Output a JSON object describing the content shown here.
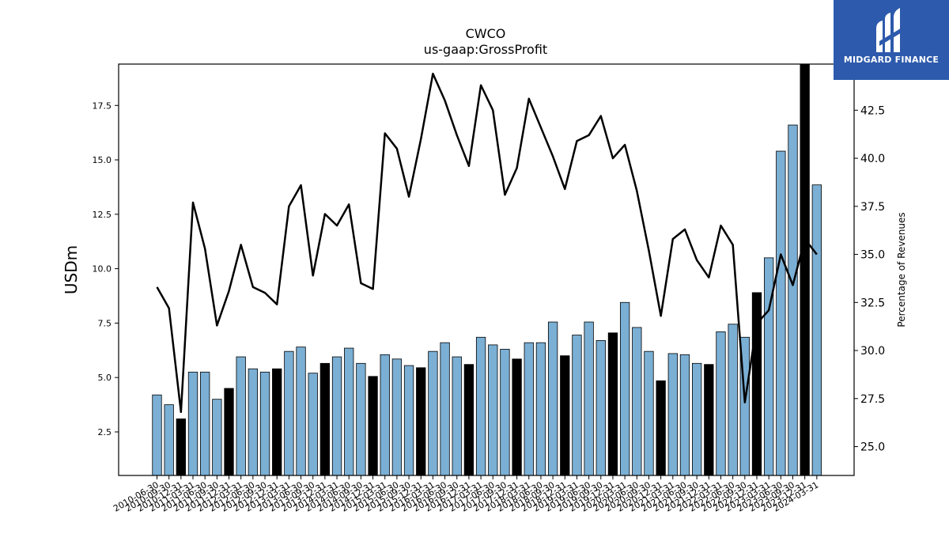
{
  "logo": {
    "text": "MIDGARD FINANCE",
    "icon": "midgard-logo-icon"
  },
  "colors": {
    "bar_default": "#7bafd4",
    "bar_highlight": "#000000",
    "line": "#000000",
    "logo_bg": "#2d5aac"
  },
  "chart_data": {
    "type": "bar",
    "title": "CWCO",
    "subtitle": "us-gaap:GrossProfit",
    "ylabel": "USDm",
    "y2label": "Percentage of Revenues",
    "ylim": [
      0.5,
      19.4
    ],
    "y2lim": [
      23.5,
      44.9
    ],
    "yticks": [
      "2.5",
      "5.0",
      "7.5",
      "10.0",
      "12.5",
      "15.0",
      "17.5"
    ],
    "y2ticks": [
      "25.0",
      "27.5",
      "30.0",
      "32.5",
      "35.0",
      "37.5",
      "40.0",
      "42.5"
    ],
    "categories": [
      "2010-06-30",
      "2010-09-30",
      "2010-12-31",
      "2011-03-31",
      "2011-06-30",
      "2011-09-30",
      "2011-12-31",
      "2012-03-31",
      "2012-06-30",
      "2012-09-30",
      "2012-12-31",
      "2013-03-31",
      "2013-06-30",
      "2013-09-30",
      "2013-12-31",
      "2014-03-31",
      "2014-06-30",
      "2014-09-30",
      "2014-12-31",
      "2015-03-31",
      "2015-06-30",
      "2015-09-30",
      "2015-12-31",
      "2016-03-31",
      "2016-06-30",
      "2016-09-30",
      "2016-12-31",
      "2017-03-31",
      "2017-06-30",
      "2017-09-30",
      "2017-12-31",
      "2018-03-31",
      "2018-06-30",
      "2018-09-30",
      "2018-12-31",
      "2019-03-31",
      "2019-06-30",
      "2019-09-30",
      "2019-12-31",
      "2020-03-31",
      "2020-06-30",
      "2020-09-30",
      "2020-12-31",
      "2021-03-31",
      "2021-06-30",
      "2021-09-30",
      "2021-12-31",
      "2022-03-31",
      "2022-06-30",
      "2022-09-30",
      "2022-12-31",
      "2023-03-31",
      "2023-06-30",
      "2023-09-30",
      "2023-12-31",
      "2024-03-31"
    ],
    "xtick_labels": [
      "2010-06-30",
      "2010-09-30",
      "2010-12-31",
      "2011-03-31",
      "2011-06-30",
      "2011-09-30",
      "2011-12-31",
      "2012-03-31",
      "2012-06-30",
      "2012-09-30",
      "2012-12-31",
      "2013-03-31",
      "2013-06-30",
      "2013-09-30",
      "2013-12-31",
      "2014-03-31",
      "2014-06-30",
      "2014-09-30",
      "2014-12-31",
      "2015-03-31",
      "2015-06-30",
      "2015-09-30",
      "2015-12-31",
      "2016-03-31",
      "2016-06-30",
      "2016-09-30",
      "2016-12-31",
      "2017-03-31",
      "2017-06-30",
      "2017-09-30",
      "2017-12-31",
      "2018-03-31",
      "2018-06-30",
      "2018-09-30",
      "2018-12-31",
      "2019-03-31",
      "2019-06-30",
      "2019-09-30",
      "2019-12-31",
      "2020-03-31",
      "2020-06-30",
      "2020-09-30",
      "2020-12-31",
      "2021-03-31",
      "2021-06-30",
      "2021-09-30",
      "2021-12-31",
      "2022-03-31",
      "2022-06-30",
      "2022-09-30",
      "2022-12-31",
      "2023-03-31",
      "2023-06-30",
      "2023-09-30",
      "2023-12-31",
      "2024-03-31"
    ],
    "bar_values": [
      4.2,
      3.75,
      3.1,
      5.25,
      5.25,
      4.0,
      4.5,
      5.95,
      5.4,
      5.25,
      5.4,
      6.2,
      6.4,
      5.2,
      5.65,
      5.95,
      6.35,
      5.65,
      5.05,
      6.05,
      5.85,
      5.55,
      5.45,
      6.2,
      6.6,
      5.95,
      5.6,
      6.85,
      6.5,
      6.3,
      5.85,
      6.6,
      6.6,
      7.55,
      6.0,
      6.95,
      7.55,
      6.7,
      7.05,
      8.45,
      7.3,
      6.2,
      4.85,
      6.1,
      6.05,
      5.65,
      5.6,
      7.1,
      7.45,
      6.85,
      8.9,
      10.5,
      15.4,
      16.6,
      19.4,
      13.85
    ],
    "bar_highlight": [
      false,
      false,
      true,
      false,
      false,
      false,
      true,
      false,
      false,
      false,
      true,
      false,
      false,
      false,
      true,
      false,
      false,
      false,
      true,
      false,
      false,
      false,
      true,
      false,
      false,
      false,
      true,
      false,
      false,
      false,
      true,
      false,
      false,
      false,
      true,
      false,
      false,
      false,
      true,
      false,
      false,
      false,
      true,
      false,
      false,
      false,
      true,
      false,
      false,
      false,
      true,
      false,
      false,
      false,
      true,
      false
    ],
    "line_values": [
      33.3,
      32.2,
      26.8,
      37.7,
      35.3,
      31.3,
      33.1,
      35.5,
      33.3,
      33.0,
      32.4,
      37.5,
      38.6,
      33.9,
      37.1,
      36.5,
      37.6,
      33.5,
      33.2,
      41.3,
      40.5,
      38.0,
      41.0,
      44.4,
      43.0,
      41.2,
      39.6,
      43.8,
      42.5,
      38.1,
      39.5,
      43.1,
      41.6,
      40.1,
      38.4,
      40.9,
      41.2,
      42.2,
      40.0,
      40.7,
      38.3,
      35.2,
      31.8,
      35.8,
      36.3,
      34.7,
      33.8,
      36.5,
      35.5,
      27.3,
      31.4,
      32.1,
      35.0,
      33.4,
      35.8,
      35.0
    ]
  }
}
